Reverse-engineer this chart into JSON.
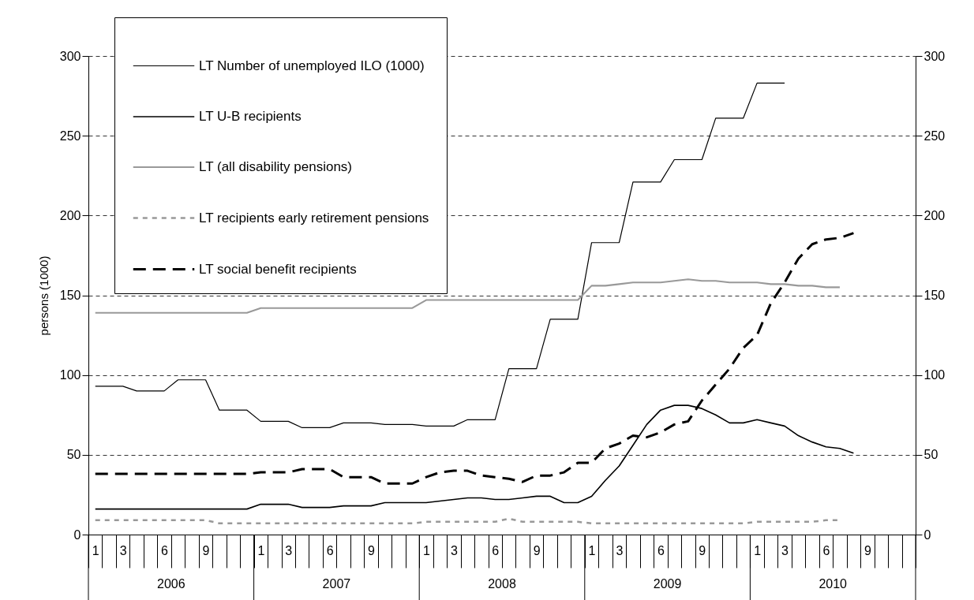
{
  "chart_data": {
    "type": "line",
    "ylabel": "persons (1000)",
    "categories": [
      "1",
      null,
      "3",
      null,
      null,
      "6",
      null,
      null,
      "9",
      null,
      null,
      null,
      "1",
      null,
      "3",
      null,
      null,
      "6",
      null,
      null,
      "9",
      null,
      null,
      null,
      "1",
      null,
      "3",
      null,
      null,
      "6",
      null,
      null,
      "9",
      null,
      null,
      null,
      "1",
      null,
      "3",
      null,
      null,
      "6",
      null,
      null,
      "9",
      null,
      null,
      null,
      "1",
      null,
      "3",
      null,
      null,
      "6",
      null,
      null,
      "9",
      null,
      null,
      null
    ],
    "annotations": [
      "2006",
      "2007",
      "2008",
      "2009",
      "2010"
    ],
    "series": [
      {
        "name": "LT  Number of unemployed ILO (1000)",
        "color": "#000000",
        "line_style": "solid",
        "values": [
          93,
          93,
          93,
          90,
          90,
          90,
          97,
          97,
          97,
          78,
          78,
          78,
          71,
          71,
          71,
          67,
          67,
          67,
          70,
          70,
          70,
          69,
          69,
          69,
          68,
          68,
          68,
          72,
          72,
          72,
          104,
          104,
          104,
          135,
          135,
          135,
          183,
          183,
          183,
          221,
          221,
          221,
          235,
          235,
          235,
          261,
          261,
          261,
          283,
          283,
          283,
          null,
          null,
          null,
          null,
          null,
          null,
          null,
          null,
          null
        ]
      },
      {
        "name": "LT U-B recipients",
        "color": "#000000",
        "line_style": "solid",
        "values": [
          16,
          16,
          16,
          16,
          16,
          16,
          16,
          16,
          16,
          16,
          16,
          16,
          19,
          19,
          19,
          17,
          17,
          17,
          18,
          18,
          18,
          20,
          20,
          20,
          20,
          21,
          22,
          23,
          23,
          22,
          22,
          23,
          24,
          24,
          20,
          20,
          24,
          34,
          43,
          56,
          69,
          78,
          81,
          81,
          79,
          75,
          70,
          70,
          72,
          70,
          68,
          62,
          58,
          55,
          54,
          51,
          null,
          null,
          null,
          null
        ]
      },
      {
        "name": "LT (all disability pensions)",
        "color": "#999999",
        "line_style": "solid",
        "values": [
          139,
          139,
          139,
          139,
          139,
          139,
          139,
          139,
          139,
          139,
          139,
          139,
          142,
          142,
          142,
          142,
          142,
          142,
          142,
          142,
          142,
          142,
          142,
          142,
          147,
          147,
          147,
          147,
          147,
          147,
          147,
          147,
          147,
          147,
          147,
          147,
          156,
          156,
          157,
          158,
          158,
          158,
          159,
          160,
          159,
          159,
          158,
          158,
          158,
          157,
          157,
          156,
          156,
          155,
          155,
          null,
          null,
          null,
          null,
          null
        ]
      },
      {
        "name": "LT recipients early retirement pensions",
        "color": "#999999",
        "line_style": "dotted",
        "values": [
          9,
          9,
          9,
          9,
          9,
          9,
          9,
          9,
          9,
          7,
          7,
          7,
          7,
          7,
          7,
          7,
          7,
          7,
          7,
          7,
          7,
          7,
          7,
          7,
          8,
          8,
          8,
          8,
          8,
          8,
          10,
          8,
          8,
          8,
          8,
          8,
          7,
          7,
          7,
          7,
          7,
          7,
          7,
          7,
          7,
          7,
          7,
          7,
          8,
          8,
          8,
          8,
          8,
          9,
          9,
          null,
          null,
          null,
          null,
          null
        ]
      },
      {
        "name": "LT social benefit recipients",
        "color": "#000000",
        "line_style": "dashed",
        "values": [
          38,
          38,
          38,
          38,
          38,
          38,
          38,
          38,
          38,
          38,
          38,
          38,
          39,
          39,
          39,
          41,
          41,
          41,
          36,
          36,
          36,
          32,
          32,
          32,
          36,
          39,
          40,
          40,
          37,
          36,
          35,
          33,
          37,
          37,
          39,
          45,
          45,
          54,
          57,
          62,
          61,
          64,
          69,
          71,
          84,
          94,
          104,
          117,
          125,
          145,
          158,
          173,
          182,
          185,
          186,
          189,
          null,
          null,
          null,
          null
        ]
      }
    ],
    "ylim": [
      0,
      300
    ],
    "yticks": [
      0,
      50,
      100,
      150,
      200,
      250,
      300
    ],
    "y2lim": [
      0,
      300
    ],
    "y2ticks": [
      0,
      50,
      100,
      150,
      200,
      250,
      300
    ],
    "grid": "y",
    "legend": "top left"
  }
}
